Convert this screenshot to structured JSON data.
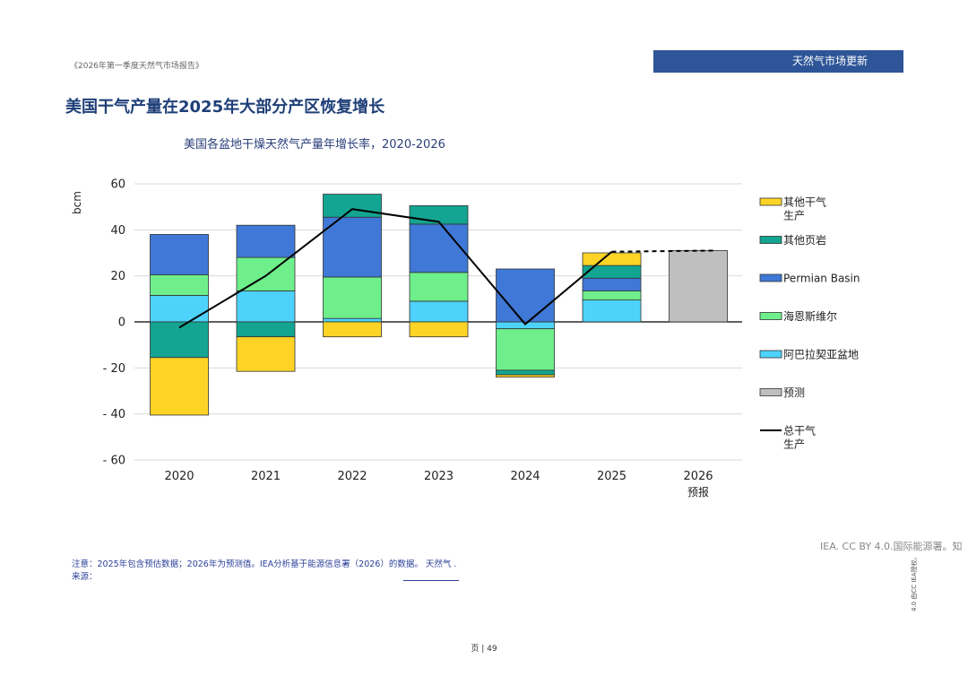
{
  "header": {
    "report_title": "《2026年第一季度天然气市场报告》",
    "section": "天然气市场更新"
  },
  "page_heading": "美国干气产量在2025年大部分产区恢复增长",
  "chart_data": {
    "type": "bar",
    "title": "美国各盆地干燥天然气产量年增长率，2020-2026",
    "ylabel": "bcm",
    "ylim": [
      -60,
      60
    ],
    "yticks": [
      60,
      40,
      20,
      0,
      -20,
      -40,
      -60
    ],
    "ytick_labels": [
      "60",
      "40",
      "20",
      "0",
      "- 20",
      "- 40",
      "- 60"
    ],
    "categories": [
      "2020",
      "2021",
      "2022",
      "2023",
      "2024",
      "2025",
      "2026"
    ],
    "category_sublabels": [
      "",
      "",
      "",
      "",
      "",
      "",
      "预报"
    ],
    "legend_position": "right",
    "series": [
      {
        "name": "阿巴拉契亚盆地",
        "color": "#4dd2fb",
        "values": [
          11.5,
          13.5,
          1.5,
          9,
          -3,
          9.5,
          0
        ]
      },
      {
        "name": "海恩斯维尔",
        "color": "#6eef8b",
        "values": [
          9,
          14.5,
          18,
          12.5,
          -18,
          4,
          0
        ]
      },
      {
        "name": "Permian Basin",
        "color": "#3f78d6",
        "values": [
          17.5,
          14,
          26,
          21,
          23,
          5.5,
          0
        ]
      },
      {
        "name": "其他页岩",
        "color": "#13a591",
        "values": [
          -15.5,
          -6.5,
          10,
          8,
          -2,
          5.5,
          0
        ]
      },
      {
        "name": "其他干气生产",
        "color": "#fdd426",
        "values": [
          -25,
          -15,
          -6.5,
          -6.5,
          -1,
          5.5,
          0
        ]
      },
      {
        "name": "预测",
        "color": "#bfbfbf",
        "values": [
          0,
          0,
          0,
          0,
          0,
          0,
          31
        ]
      }
    ],
    "line": {
      "name": "总干气生产",
      "color": "#000000",
      "values": [
        -2.5,
        20,
        49,
        43.5,
        -1,
        30.5,
        31
      ]
    },
    "legend_order": [
      "其他干气生产",
      "其他页岩",
      "Permian Basin",
      "海恩斯维尔",
      "阿巴拉契亚盆地",
      "预测",
      "总干气生产"
    ]
  },
  "credit": "IEA. CC BY 4.0.国际能源署。知",
  "side_note": "4.0 由CC IEA授权。",
  "note": "注意：2025年包含预估数据；2026年为预测值。IEA分析基于能源信息署（2026）的数据。 天然气 . 来源：",
  "page_number": "页 | 49"
}
